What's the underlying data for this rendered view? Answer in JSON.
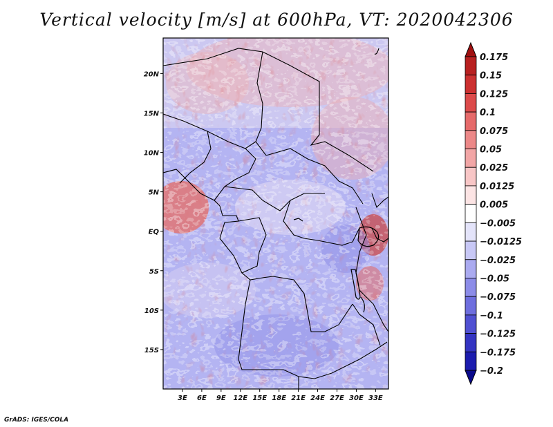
{
  "title": "Vertical velocity [m/s] at 600hPa, VT: 2020042306",
  "credit": "GrADS: IGES/COLA",
  "chart_data": {
    "type": "heatmap",
    "variable": "Vertical velocity",
    "units": "m/s",
    "level": "600hPa",
    "valid_time": "2020042306",
    "lon_range": [
      0,
      35
    ],
    "lat_range": [
      -20,
      24.5
    ],
    "x_ticks": [
      3,
      6,
      9,
      12,
      15,
      18,
      21,
      24,
      27,
      30,
      33
    ],
    "x_tick_labels": [
      "3E",
      "6E",
      "9E",
      "12E",
      "15E",
      "18E",
      "21E",
      "24E",
      "27E",
      "30E",
      "33E"
    ],
    "y_ticks": [
      20,
      15,
      10,
      5,
      0,
      -5,
      -10,
      -15
    ],
    "y_tick_labels": [
      "20N",
      "15N",
      "10N",
      "5N",
      "EQ",
      "5S",
      "10S",
      "15S"
    ],
    "colorbar": {
      "levels": [
        0.175,
        0.15,
        0.125,
        0.1,
        0.075,
        0.05,
        0.025,
        0.0125,
        0.005,
        -0.005,
        -0.0125,
        -0.025,
        -0.05,
        -0.075,
        -0.1,
        -0.125,
        -0.175,
        -0.2
      ],
      "labels": [
        "0.175",
        "0.15",
        "0.125",
        "0.1",
        "0.075",
        "0.05",
        "0.025",
        "0.0125",
        "0.005",
        "−0.005",
        "−0.0125",
        "−0.025",
        "−0.05",
        "−0.075",
        "−0.1",
        "−0.125",
        "−0.175",
        "−0.2"
      ],
      "colors": [
        "#a01010",
        "#b82020",
        "#cc3030",
        "#dc4a4a",
        "#e66a6a",
        "#ec8888",
        "#f2a6a6",
        "#f8c6c6",
        "#fce4e4",
        "#ffffff",
        "#e4e4fa",
        "#c8c8f6",
        "#aaaaf0",
        "#8c8ce8",
        "#6e6ede",
        "#5050d2",
        "#3434c2",
        "#1c1cae",
        "#0a0a8c"
      ]
    }
  }
}
